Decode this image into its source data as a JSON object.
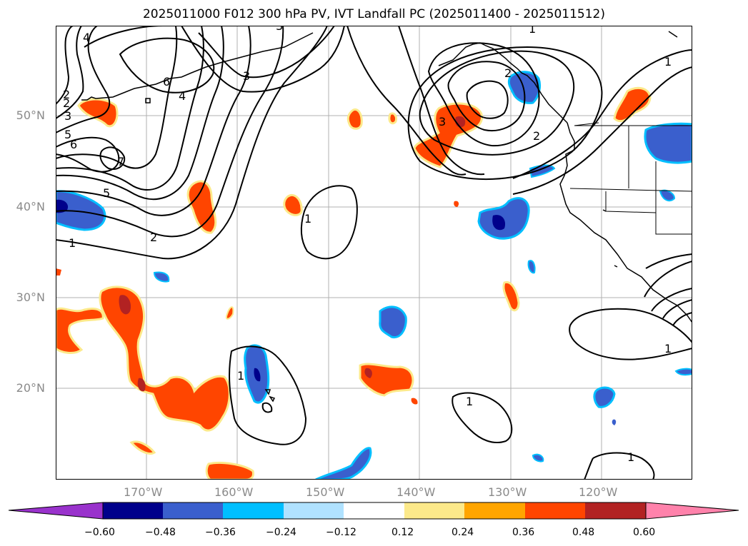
{
  "title": "2025011000 F012 300 hPa PV, IVT Landfall PC (2025011400 - 2025011512)",
  "lat_labels": [
    "50°N",
    "40°N",
    "30°N",
    "20°N"
  ],
  "lon_labels": [
    "170°W",
    "160°W",
    "150°W",
    "140°W",
    "130°W",
    "120°W"
  ],
  "colorbar": {
    "extend": "both",
    "ticks": [
      "−0.60",
      "−0.48",
      "−0.36",
      "−0.24",
      "−0.12",
      "0.12",
      "0.24",
      "0.36",
      "0.48",
      "0.60"
    ],
    "colors": {
      "under": "#9932cc",
      "b1": "#00008b",
      "b2": "#3a5fcd",
      "b3": "#00bfff",
      "b4": "#b0e2ff",
      "mid": "#ffffff",
      "r1": "#fce98a",
      "r2": "#ffa500",
      "r3": "#ff4500",
      "r4": "#b22222",
      "over": "#ff82ab"
    }
  },
  "contour_labels": [
    "4",
    "3",
    "2",
    "3",
    "6",
    "4",
    "3",
    "2",
    "5",
    "6",
    "7",
    "5",
    "2",
    "1",
    "1",
    "3",
    "2",
    "1",
    "1",
    "1",
    "1",
    "1",
    "2",
    "1"
  ]
}
